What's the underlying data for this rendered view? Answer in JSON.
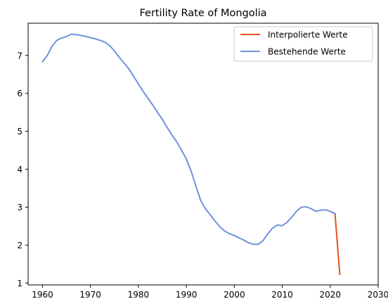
{
  "chart_data": {
    "type": "line",
    "title": "Fertility Rate of Mongolia",
    "xlabel": "",
    "ylabel": "",
    "xlim": [
      1957,
      2030
    ],
    "ylim": [
      0.95,
      7.85
    ],
    "xticks": [
      1960,
      1970,
      1980,
      1990,
      2000,
      2010,
      2020,
      2030
    ],
    "yticks": [
      1,
      2,
      3,
      4,
      5,
      6,
      7
    ],
    "grid": false,
    "legend_position": "top-right",
    "series": [
      {
        "name": "Interpolierte Werte",
        "color": "#e8521c",
        "x": [
          2021,
          2022
        ],
        "y": [
          2.83,
          1.23
        ]
      },
      {
        "name": "Bestehende Werte",
        "color": "#6f93d8",
        "x": [
          1960,
          1961,
          1962,
          1963,
          1964,
          1965,
          1966,
          1967,
          1968,
          1969,
          1970,
          1971,
          1972,
          1973,
          1974,
          1975,
          1976,
          1977,
          1978,
          1979,
          1980,
          1981,
          1982,
          1983,
          1984,
          1985,
          1986,
          1987,
          1988,
          1989,
          1990,
          1991,
          1992,
          1993,
          1994,
          1995,
          1996,
          1997,
          1998,
          1999,
          2000,
          2001,
          2002,
          2003,
          2004,
          2005,
          2006,
          2007,
          2008,
          2009,
          2010,
          2011,
          2012,
          2013,
          2014,
          2015,
          2016,
          2017,
          2018,
          2019,
          2020,
          2021
        ],
        "y": [
          6.84,
          7.0,
          7.25,
          7.4,
          7.46,
          7.5,
          7.56,
          7.55,
          7.53,
          7.5,
          7.47,
          7.44,
          7.4,
          7.35,
          7.26,
          7.12,
          6.95,
          6.8,
          6.65,
          6.45,
          6.25,
          6.05,
          5.87,
          5.69,
          5.5,
          5.31,
          5.1,
          4.9,
          4.72,
          4.5,
          4.27,
          3.95,
          3.55,
          3.17,
          2.95,
          2.8,
          2.63,
          2.48,
          2.37,
          2.3,
          2.25,
          2.19,
          2.13,
          2.06,
          2.02,
          2.02,
          2.12,
          2.3,
          2.45,
          2.53,
          2.51,
          2.6,
          2.74,
          2.9,
          3.0,
          3.01,
          2.96,
          2.89,
          2.92,
          2.93,
          2.89,
          2.83
        ]
      }
    ]
  }
}
